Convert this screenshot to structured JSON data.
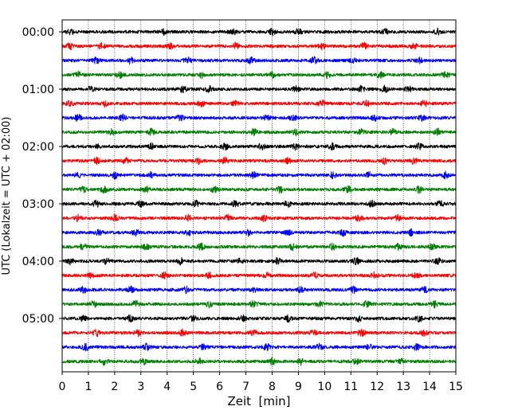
{
  "chart_data": {
    "type": "line",
    "title": "",
    "xlabel": "Zeit  [min]",
    "ylabel": "UTC (Lokalzeit = UTC + 02:00)",
    "xlim": [
      0,
      15
    ],
    "x_ticks": [
      "0",
      "1",
      "2",
      "3",
      "4",
      "5",
      "6",
      "7",
      "8",
      "9",
      "10",
      "11",
      "12",
      "13",
      "14",
      "15"
    ],
    "y_ticks": [
      "00:00",
      "01:00",
      "02:00",
      "03:00",
      "04:00",
      "05:00"
    ],
    "grid": "vertical dotted at each minute",
    "trace_colors": [
      "#000000",
      "#ff0000",
      "#0000ff",
      "#008000"
    ],
    "trace_interval_min": 15,
    "traces": [
      {
        "start": "00:00",
        "color": "#000000",
        "bursts": [
          0.3,
          3.9,
          6.5,
          8.0,
          9.0,
          12.3,
          14.3
        ]
      },
      {
        "start": "00:15",
        "color": "#ff0000",
        "bursts": [
          0.3,
          1.5,
          4.1,
          6.6,
          9.9,
          11.5,
          13.4
        ]
      },
      {
        "start": "00:30",
        "color": "#0000ff",
        "bursts": [
          1.3,
          2.6,
          4.8,
          7.2,
          9.6,
          11.1,
          13.6
        ]
      },
      {
        "start": "00:45",
        "color": "#008000",
        "bursts": [
          0.6,
          2.2,
          5.3,
          8.0,
          10.1,
          12.1,
          14.6
        ]
      },
      {
        "start": "01:00",
        "color": "#000000",
        "bursts": [
          1.1,
          4.6,
          5.6,
          8.9,
          11.4,
          12.3,
          13.2
        ]
      },
      {
        "start": "01:15",
        "color": "#ff0000",
        "bursts": [
          0.3,
          1.6,
          5.3,
          6.6,
          9.9,
          11.6,
          13.8
        ]
      },
      {
        "start": "01:30",
        "color": "#0000ff",
        "bursts": [
          0.6,
          2.3,
          4.5,
          7.8,
          8.8,
          11.9,
          13.7
        ]
      },
      {
        "start": "01:45",
        "color": "#008000",
        "bursts": [
          1.9,
          3.4,
          7.3,
          8.9,
          11.4,
          12.6,
          14.3
        ]
      },
      {
        "start": "02:00",
        "color": "#000000",
        "bursts": [
          1.3,
          3.4,
          6.2,
          7.6,
          8.9,
          10.3,
          13.6
        ]
      },
      {
        "start": "02:15",
        "color": "#ff0000",
        "bursts": [
          1.3,
          2.4,
          5.2,
          6.2,
          8.6,
          12.3,
          13.4
        ]
      },
      {
        "start": "02:30",
        "color": "#0000ff",
        "bursts": [
          0.6,
          2.0,
          3.4,
          7.3,
          10.3,
          11.7,
          14.6
        ]
      },
      {
        "start": "02:45",
        "color": "#008000",
        "bursts": [
          0.8,
          1.6,
          3.2,
          5.8,
          8.3,
          10.9,
          13.6
        ]
      },
      {
        "start": "03:00",
        "color": "#000000",
        "bursts": [
          1.3,
          3.0,
          5.1,
          6.6,
          8.6,
          11.8,
          14.4
        ]
      },
      {
        "start": "03:15",
        "color": "#ff0000",
        "bursts": [
          0.6,
          2.0,
          4.8,
          6.3,
          7.7,
          11.3,
          12.8
        ]
      },
      {
        "start": "03:30",
        "color": "#0000ff",
        "bursts": [
          1.4,
          2.8,
          4.8,
          7.1,
          8.6,
          10.7,
          13.3
        ]
      },
      {
        "start": "03:45",
        "color": "#008000",
        "bursts": [
          0.8,
          3.2,
          5.3,
          8.8,
          10.3,
          12.8,
          14.1
        ]
      },
      {
        "start": "04:00",
        "color": "#000000",
        "bursts": [
          0.3,
          1.7,
          4.5,
          6.8,
          8.2,
          11.2,
          14.3
        ]
      },
      {
        "start": "04:15",
        "color": "#ff0000",
        "bursts": [
          1.1,
          3.9,
          5.6,
          7.8,
          9.6,
          11.9,
          13.5
        ]
      },
      {
        "start": "04:30",
        "color": "#0000ff",
        "bursts": [
          0.8,
          2.6,
          4.7,
          7.3,
          9.1,
          11.1,
          13.8
        ]
      },
      {
        "start": "04:45",
        "color": "#008000",
        "bursts": [
          1.2,
          2.8,
          5.6,
          7.3,
          9.8,
          11.6,
          14.2
        ]
      },
      {
        "start": "05:00",
        "color": "#000000",
        "bursts": [
          0.8,
          2.6,
          5.0,
          6.9,
          8.6,
          11.3,
          13.6
        ]
      },
      {
        "start": "05:15",
        "color": "#ff0000",
        "bursts": [
          1.3,
          2.9,
          4.6,
          7.3,
          9.6,
          11.4,
          13.8
        ]
      },
      {
        "start": "05:30",
        "color": "#0000ff",
        "bursts": [
          0.9,
          3.2,
          5.4,
          7.8,
          9.8,
          11.7,
          13.5
        ]
      },
      {
        "start": "05:45",
        "color": "#008000",
        "bursts": [
          1.6,
          3.1,
          5.2,
          8.0,
          9.1,
          11.2,
          12.9
        ]
      }
    ]
  }
}
